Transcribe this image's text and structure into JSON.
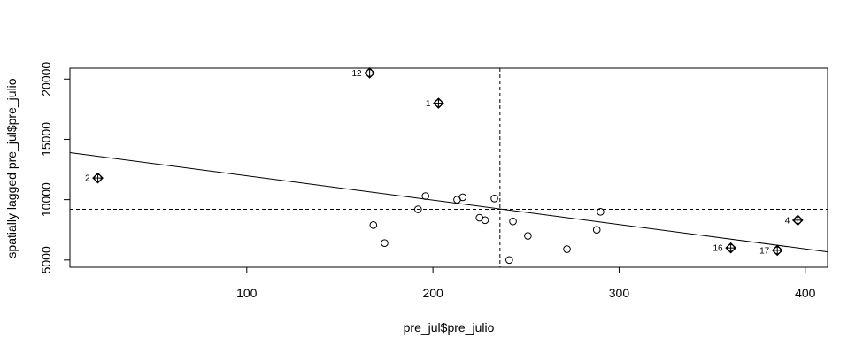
{
  "chart_data": {
    "type": "scatter",
    "title": "",
    "xlabel": "pre_jul$pre_julio",
    "ylabel": "spatially lagged pre_jul$pre_julio",
    "xlim": [
      5,
      412
    ],
    "ylim": [
      4400,
      20900
    ],
    "x_ticks": [
      100,
      200,
      300,
      400
    ],
    "y_ticks": [
      5000,
      10000,
      15000,
      20000
    ],
    "x_tick_labels": [
      "100",
      "200",
      "300",
      "400"
    ],
    "y_tick_labels": [
      "5000",
      "10000",
      "15000",
      "20000"
    ],
    "mean_x": 236,
    "mean_y": 9200,
    "regression_line": {
      "slope": -20.2,
      "intercept": 14000
    },
    "points": [
      {
        "x": 20,
        "y": 11800,
        "influential": true,
        "label": "2"
      },
      {
        "x": 166,
        "y": 20500,
        "influential": true,
        "label": "12"
      },
      {
        "x": 203,
        "y": 18000,
        "influential": true,
        "label": "1"
      },
      {
        "x": 168,
        "y": 7900,
        "influential": false,
        "label": ""
      },
      {
        "x": 174,
        "y": 6400,
        "influential": false,
        "label": ""
      },
      {
        "x": 192,
        "y": 9200,
        "influential": false,
        "label": ""
      },
      {
        "x": 196,
        "y": 10300,
        "influential": false,
        "label": ""
      },
      {
        "x": 213,
        "y": 10000,
        "influential": false,
        "label": ""
      },
      {
        "x": 216,
        "y": 10200,
        "influential": false,
        "label": ""
      },
      {
        "x": 225,
        "y": 8500,
        "influential": false,
        "label": ""
      },
      {
        "x": 228,
        "y": 8300,
        "influential": false,
        "label": ""
      },
      {
        "x": 233,
        "y": 10100,
        "influential": false,
        "label": ""
      },
      {
        "x": 241,
        "y": 5000,
        "influential": false,
        "label": ""
      },
      {
        "x": 243,
        "y": 8200,
        "influential": false,
        "label": ""
      },
      {
        "x": 251,
        "y": 7000,
        "influential": false,
        "label": ""
      },
      {
        "x": 272,
        "y": 5900,
        "influential": false,
        "label": ""
      },
      {
        "x": 288,
        "y": 7500,
        "influential": false,
        "label": ""
      },
      {
        "x": 290,
        "y": 9000,
        "influential": false,
        "label": ""
      },
      {
        "x": 360,
        "y": 6000,
        "influential": true,
        "label": "16"
      },
      {
        "x": 385,
        "y": 5800,
        "influential": true,
        "label": "17"
      },
      {
        "x": 396,
        "y": 8300,
        "influential": true,
        "label": "4"
      }
    ]
  }
}
